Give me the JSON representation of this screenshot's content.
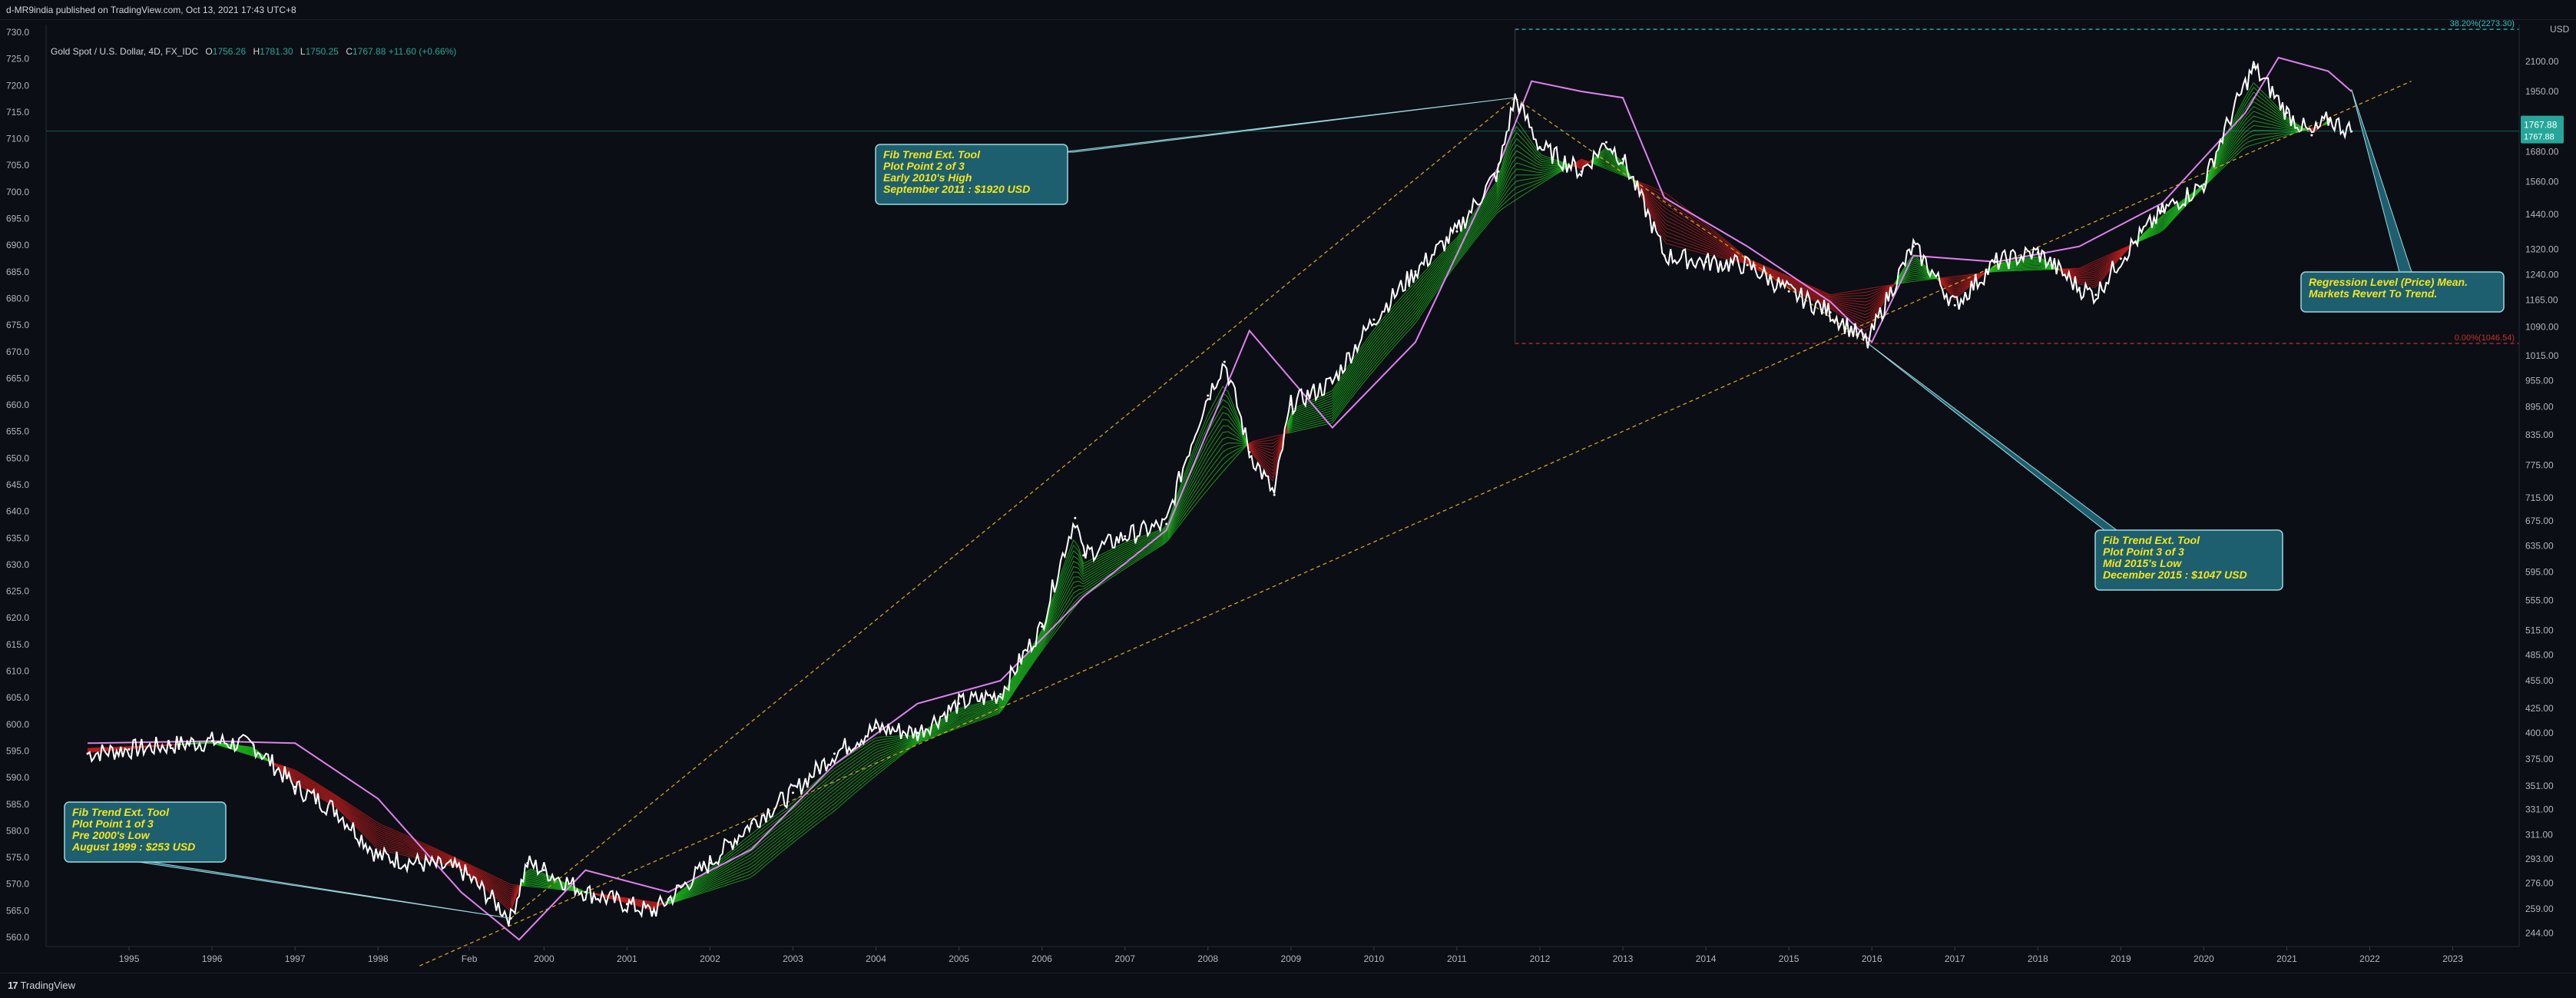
{
  "header": {
    "publisher": "d-MR9india published on TradingView.com, Oct 13, 2021 17:43 UTC+8"
  },
  "legend": {
    "symbol": "Gold Spot / U.S. Dollar, 4D, FX_IDC",
    "open_label": "O",
    "open": "1756.26",
    "high_label": "H",
    "high": "1781.30",
    "low_label": "L",
    "low": "1750.25",
    "close_label": "C",
    "close": "1767.88",
    "change": "+11.60 (+0.66%)"
  },
  "footer": {
    "brand": "TradingView",
    "logo_glyph": "17"
  },
  "axis_corner": {
    "currency": "USD"
  },
  "colors": {
    "background": "#0b0e14",
    "price": "#ffffff",
    "ma_green": "#1ec41e",
    "ma_red": "#c41e1e",
    "envelope": "#e080f0",
    "trend_dashed": "#d4a020",
    "fib_top": "#26c6c6",
    "fib_bottom": "#c43030",
    "callout_bg": "#1d5f6e",
    "callout_text": "#f5e51c"
  },
  "chart_data": {
    "type": "line",
    "title": "Gold Spot / U.S. Dollar, 4D, FX_IDC",
    "x_ticks": [
      "1995",
      "1996",
      "1997",
      "1998",
      "Feb",
      "2000",
      "2001",
      "2002",
      "2003",
      "2004",
      "2005",
      "2006",
      "2007",
      "2008",
      "2009",
      "2010",
      "2011",
      "2012",
      "2013",
      "2014",
      "2015",
      "2016",
      "2017",
      "2018",
      "2019",
      "2020",
      "2021",
      "2022",
      "2023"
    ],
    "left_axis": {
      "ticks": [
        "730.0",
        "725.0",
        "720.0",
        "715.0",
        "710.0",
        "705.0",
        "700.0",
        "695.0",
        "690.0",
        "685.0",
        "680.0",
        "675.0",
        "670.0",
        "665.0",
        "660.0",
        "655.0",
        "650.0",
        "645.0",
        "640.0",
        "635.0",
        "630.0",
        "625.0",
        "620.0",
        "615.0",
        "610.0",
        "605.0",
        "600.0",
        "595.0",
        "590.0",
        "585.0",
        "580.0",
        "575.0",
        "570.0",
        "565.0",
        "560.0"
      ]
    },
    "right_axis": {
      "scale": "log",
      "ticks": [
        "2100.00",
        "1950.00",
        "1800.00",
        "1680.00",
        "1560.00",
        "1440.00",
        "1320.00",
        "1240.00",
        "1165.00",
        "1090.00",
        "1015.00",
        "955.00",
        "895.00",
        "835.00",
        "775.00",
        "715.00",
        "675.00",
        "635.00",
        "595.00",
        "555.00",
        "515.00",
        "485.00",
        "455.00",
        "425.00",
        "400.00",
        "375.00",
        "351.00",
        "331.00",
        "311.00",
        "293.00",
        "276.00",
        "259.00",
        "244.00"
      ],
      "current_price": "1767.88",
      "current_sub": "1767.88"
    },
    "fib_levels": [
      {
        "label": "38.20%(2273.30)",
        "value": 2273.3
      },
      {
        "label": "0.00%(1046.54)",
        "value": 1046.54
      }
    ],
    "series": [
      {
        "name": "",
        "x": [
          1994.5,
          1995.0,
          1995.5,
          1996.0,
          1996.5,
          1997.0,
          1997.5,
          1998.0,
          1998.5,
          1999.0,
          1999.6,
          1999.8,
          2000.0,
          2000.5,
          2001.0,
          2001.3,
          2001.5,
          2002.0,
          2002.5,
          2003.0,
          2003.5,
          2004.0,
          2004.5,
          2005.0,
          2005.5,
          2006.0,
          2006.4,
          2006.5,
          2007.0,
          2007.5,
          2008.0,
          2008.2,
          2008.5,
          2008.8,
          2009.0,
          2009.5,
          2010.0,
          2010.5,
          2011.0,
          2011.5,
          2011.7,
          2012.0,
          2012.5,
          2012.8,
          2013.0,
          2013.5,
          2014.0,
          2014.5,
          2015.0,
          2015.5,
          2015.95,
          2016.5,
          2017.0,
          2017.5,
          2018.0,
          2018.5,
          2018.7,
          2019.0,
          2019.5,
          2020.0,
          2020.6,
          2021.0,
          2021.3,
          2021.5,
          2021.78
        ],
        "values": [
          380,
          384,
          388,
          392,
          388,
          350,
          330,
          295,
          290,
          285,
          253,
          290,
          285,
          270,
          262,
          257,
          265,
          290,
          320,
          345,
          380,
          405,
          400,
          430,
          440,
          520,
          680,
          620,
          650,
          670,
          920,
          1000,
          800,
          720,
          900,
          950,
          1110,
          1250,
          1380,
          1600,
          1920,
          1700,
          1600,
          1720,
          1650,
          1300,
          1280,
          1270,
          1190,
          1130,
          1047,
          1330,
          1150,
          1280,
          1310,
          1200,
          1180,
          1290,
          1450,
          1550,
          2070,
          1850,
          1750,
          1820,
          1767
        ]
      },
      {
        "name": "",
        "x": [
          1994.5,
          1996.0,
          1997.0,
          1998.0,
          1999.6,
          2000.5,
          2001.5,
          2002.5,
          2003.5,
          2004.5,
          2005.5,
          2006.5,
          2007.5,
          2008.5,
          2009.5,
          2010.5,
          2011.5,
          2012.5,
          2013.5,
          2014.5,
          2015.5,
          2016.5,
          2017.5,
          2018.5,
          2019.5,
          2020.5,
          2021.5
        ],
        "values": [
          385,
          390,
          365,
          320,
          275,
          270,
          262,
          280,
          330,
          390,
          420,
          560,
          640,
          820,
          860,
          1100,
          1450,
          1650,
          1520,
          1290,
          1180,
          1220,
          1250,
          1260,
          1380,
          1700,
          1800
        ]
      },
      {
        "name": "",
        "x": [
          1994.5,
          1996.0,
          1997.0,
          1998.0,
          1999.0,
          1999.7,
          2000.5,
          2001.5,
          2002.5,
          2003.5,
          2004.5,
          2005.5,
          2006.5,
          2007.5,
          2008.5,
          2009.5,
          2010.5,
          2011.5,
          2011.9,
          2012.5,
          2013.0,
          2013.5,
          2014.5,
          2015.5,
          2016.0,
          2016.5,
          2017.5,
          2018.5,
          2019.5,
          2020.5,
          2020.9,
          2021.5,
          2021.78
        ],
        "values": [
          390,
          392,
          390,
          340,
          270,
          240,
          285,
          270,
          300,
          370,
          430,
          455,
          560,
          660,
          1080,
          850,
          1050,
          1620,
          2000,
          1950,
          1920,
          1500,
          1330,
          1160,
          1050,
          1300,
          1280,
          1330,
          1480,
          1850,
          2120,
          2050,
          1950
        ]
      }
    ],
    "trend_lines": [
      {
        "from": {
          "x": 1999.6,
          "y": 253
        },
        "to": {
          "x": 2011.7,
          "y": 1920
        }
      },
      {
        "from": {
          "x": 1998.5,
          "y": 225
        },
        "to": {
          "x": 2022.5,
          "y": 2000
        }
      },
      {
        "from": {
          "x": 2011.7,
          "y": 1920
        },
        "to": {
          "x": 2015.95,
          "y": 1047
        }
      }
    ],
    "annotations": [
      {
        "lines": [
          "Fib Trend Ext. Tool",
          "Plot Point 1 of 3",
          "Pre 2000's Low",
          "August 1999 : $253 USD"
        ],
        "point": {
          "x": 1999.6,
          "y": 253
        }
      },
      {
        "lines": [
          "Fib Trend Ext. Tool",
          "Plot Point 2 of 3",
          "Early 2010's High",
          "September 2011 : $1920 USD"
        ],
        "point": {
          "x": 2011.7,
          "y": 1920
        }
      },
      {
        "lines": [
          "Fib Trend Ext. Tool",
          "Plot Point 3 of 3",
          "Mid 2015's Low",
          "December 2015 : $1047 USD"
        ],
        "point": {
          "x": 2015.95,
          "y": 1047
        }
      },
      {
        "lines": [
          "Regression Level (Price) Mean.",
          "Markets Revert To Trend."
        ],
        "point": {
          "x": 2021.78,
          "y": 1960
        }
      }
    ]
  }
}
